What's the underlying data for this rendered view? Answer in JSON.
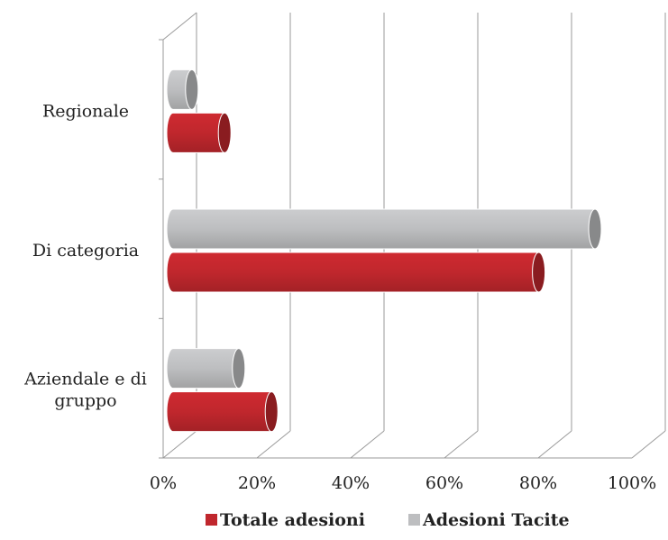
{
  "chart_data": {
    "type": "bar",
    "orientation": "horizontal",
    "style": "3d-cylinder",
    "categories": [
      "Aziendale e di gruppo",
      "Di categoria",
      "Regionale"
    ],
    "category_label_lines": [
      [
        "Aziendale e di",
        "gruppo"
      ],
      [
        "Di categoria"
      ],
      [
        "Regionale"
      ]
    ],
    "series": [
      {
        "name": "Totale adesioni",
        "color": "#c0272d",
        "values": [
          21,
          78,
          11
        ]
      },
      {
        "name": "Adesioni Tacite",
        "color": "#bdbec0",
        "values": [
          14,
          90,
          4
        ]
      }
    ],
    "x_ticks": [
      "0%",
      "20%",
      "40%",
      "60%",
      "80%",
      "100%"
    ],
    "xlim": [
      0,
      100
    ],
    "grid": true,
    "legend_position": "bottom"
  }
}
